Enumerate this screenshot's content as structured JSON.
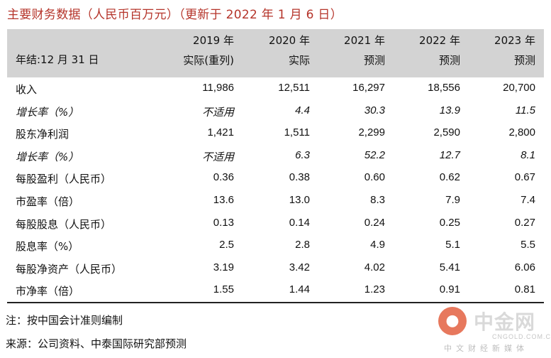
{
  "title": "主要财务数据（人民币百万元）（更新于 2022 年 1 月 6 日）",
  "header": {
    "year_label": "年结:12 月 31 日",
    "columns": [
      {
        "year": "2019 年",
        "type": "实际(重列)"
      },
      {
        "year": "2020 年",
        "type": "实际"
      },
      {
        "year": "2021 年",
        "type": "预测"
      },
      {
        "year": "2022 年",
        "type": "预测"
      },
      {
        "year": "2023 年",
        "type": "预测"
      }
    ]
  },
  "rows": [
    {
      "label": "收入",
      "values": [
        "11,986",
        "12,511",
        "16,297",
        "18,556",
        "20,700"
      ]
    },
    {
      "label": "增长率（%）",
      "values": [
        "不适用",
        "4.4",
        "30.3",
        "13.9",
        "11.5"
      ]
    },
    {
      "label": "股东净利润",
      "values": [
        "1,421",
        "1,511",
        "2,299",
        "2,590",
        "2,800"
      ]
    },
    {
      "label": "增长率（%）",
      "values": [
        "不适用",
        "6.3",
        "52.2",
        "12.7",
        "8.1"
      ]
    },
    {
      "label": "每股盈利（人民币）",
      "values": [
        "0.36",
        "0.38",
        "0.60",
        "0.62",
        "0.67"
      ]
    },
    {
      "label": "市盈率（倍）",
      "values": [
        "13.6",
        "13.0",
        "8.3",
        "7.9",
        "7.4"
      ]
    },
    {
      "label": "每股股息（人民币）",
      "values": [
        "0.13",
        "0.14",
        "0.24",
        "0.25",
        "0.27"
      ]
    },
    {
      "label": "股息率（%）",
      "values": [
        "2.5",
        "2.8",
        "4.9",
        "5.1",
        "5.5"
      ]
    },
    {
      "label": "每股净资产（人民币）",
      "values": [
        "3.19",
        "3.42",
        "4.02",
        "5.41",
        "6.06"
      ]
    },
    {
      "label": "市净率（倍）",
      "values": [
        "1.55",
        "1.44",
        "1.23",
        "0.91",
        "0.81"
      ]
    }
  ],
  "notes": {
    "note": "注：按中国会计准则编制",
    "source": "来源：公司资料、中泰国际研究部预测"
  },
  "watermark": {
    "name": "中金网",
    "url": "CNGOLD.COM.CN",
    "slogan": "中文财经新媒体"
  }
}
